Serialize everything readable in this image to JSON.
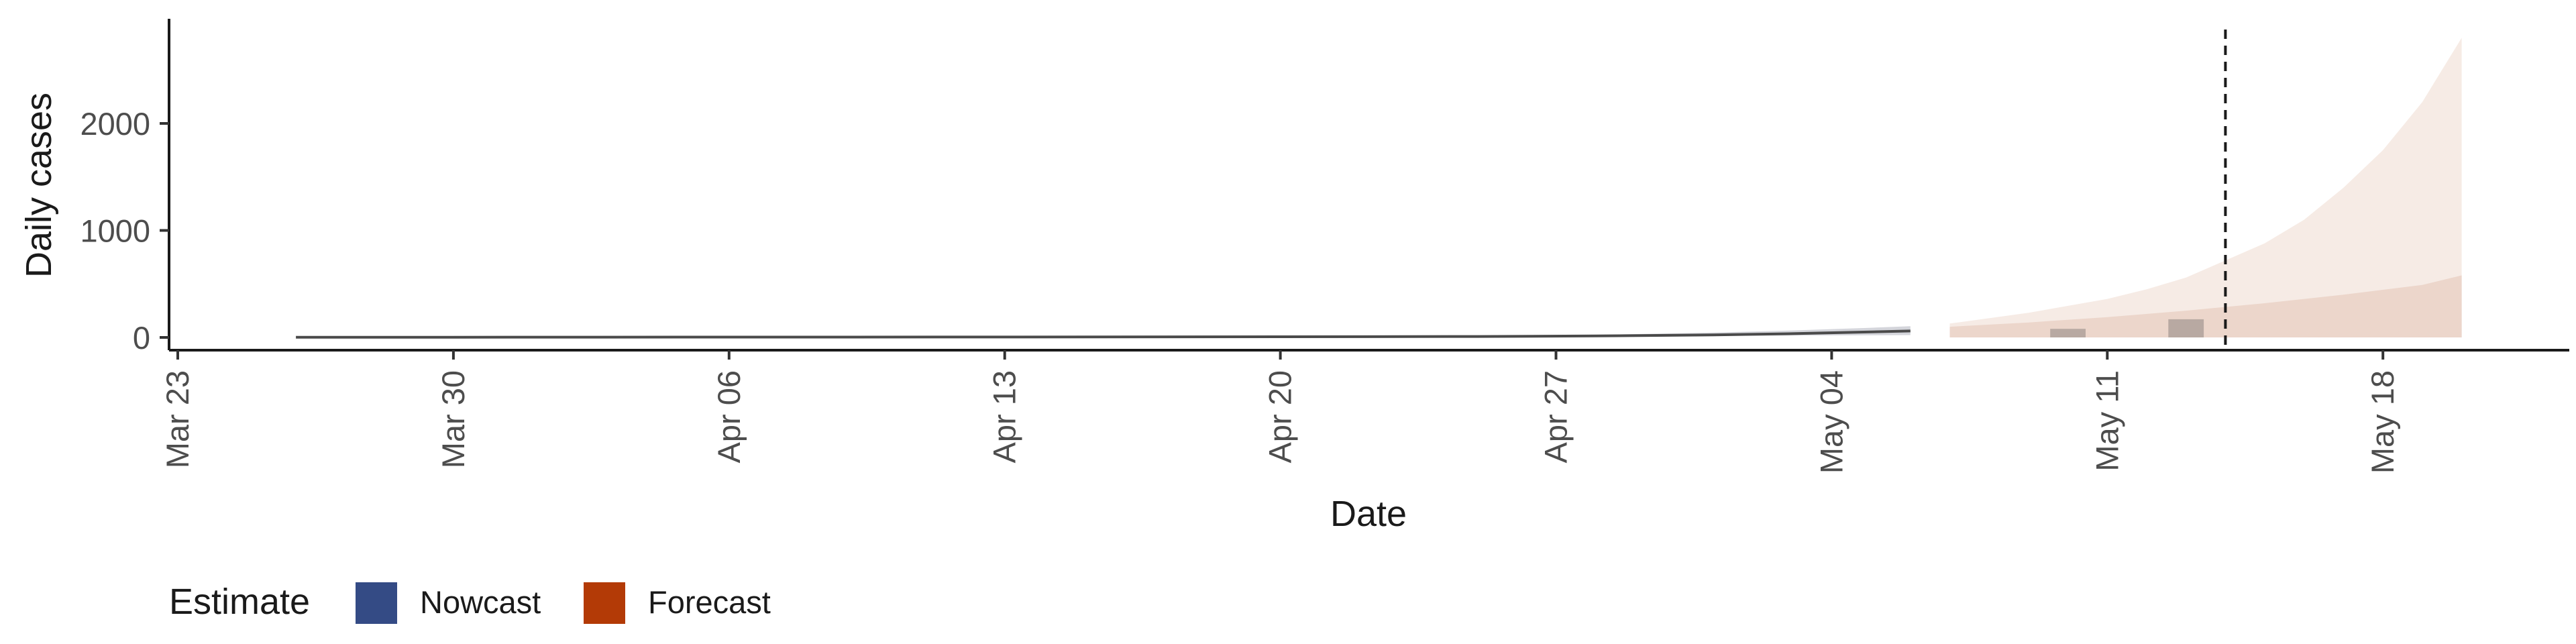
{
  "chart_data": {
    "type": "area",
    "xlabel": "Date",
    "ylabel": "Daily cases",
    "x_ticks": [
      "Mar 23",
      "Mar 30",
      "Apr 06",
      "Apr 13",
      "Apr 20",
      "Apr 27",
      "May 04",
      "May 11",
      "May 18"
    ],
    "y_ticks": [
      "0",
      "1000",
      "2000"
    ],
    "ylim": [
      -130,
      2950
    ],
    "xlim": [
      "2020-03-23",
      "2020-05-24"
    ],
    "grid": false,
    "forecast_cutoff": "2020-05-14",
    "legend": {
      "title": "Estimate",
      "placement": "bottom-left",
      "items": [
        {
          "label": "Nowcast",
          "color": "#344b85"
        },
        {
          "label": "Forecast",
          "color": "#b33a06"
        }
      ]
    },
    "observed_cases": {
      "x": [
        "2020-05-10",
        "2020-05-13"
      ],
      "values": [
        80,
        170
      ]
    },
    "estimate_line": {
      "x": [
        "2020-03-26",
        "2020-03-30",
        "2020-04-06",
        "2020-04-13",
        "2020-04-20",
        "2020-04-25",
        "2020-04-28",
        "2020-05-01",
        "2020-05-03",
        "2020-05-05",
        "2020-05-06"
      ],
      "values": [
        2,
        2,
        3,
        4,
        6,
        9,
        14,
        24,
        35,
        52,
        60
      ]
    },
    "nowcast_band": {
      "x": [
        "2020-04-25",
        "2020-04-28",
        "2020-05-01",
        "2020-05-03",
        "2020-05-05",
        "2020-05-06"
      ],
      "lower": [
        6,
        9,
        14,
        18,
        20,
        22
      ],
      "upper": [
        14,
        24,
        45,
        65,
        90,
        105
      ]
    },
    "forecast_inner_band": {
      "x": [
        "2020-05-07",
        "2020-05-09",
        "2020-05-11",
        "2020-05-13",
        "2020-05-15",
        "2020-05-17",
        "2020-05-19",
        "2020-05-20"
      ],
      "lower": [
        0,
        0,
        0,
        0,
        0,
        0,
        0,
        0
      ],
      "upper": [
        100,
        140,
        190,
        250,
        320,
        400,
        490,
        580
      ]
    },
    "forecast_outer_band": {
      "x": [
        "2020-05-07",
        "2020-05-09",
        "2020-05-11",
        "2020-05-12",
        "2020-05-13",
        "2020-05-14",
        "2020-05-15",
        "2020-05-16",
        "2020-05-17",
        "2020-05-18",
        "2020-05-19",
        "2020-05-20"
      ],
      "lower": [
        0,
        0,
        0,
        0,
        0,
        0,
        0,
        0,
        0,
        0,
        0,
        0
      ],
      "upper": [
        130,
        230,
        360,
        450,
        560,
        720,
        880,
        1100,
        1400,
        1750,
        2200,
        2800
      ]
    }
  }
}
